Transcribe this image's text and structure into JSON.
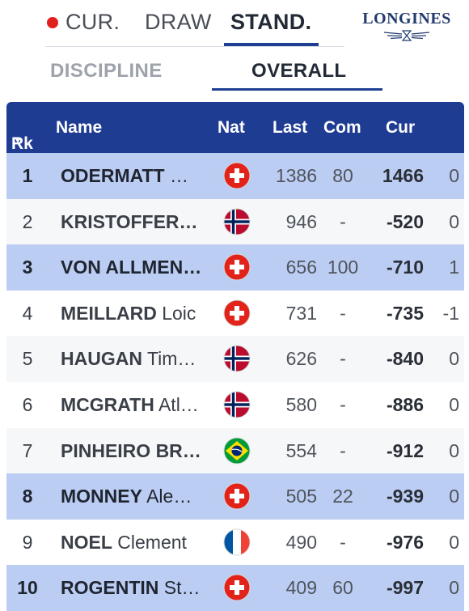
{
  "top_tabs": {
    "cur": "CUR.",
    "draw": "DRAW",
    "stand": "STAND."
  },
  "sponsor_logo": "LONGINES",
  "sub_tabs": {
    "discipline": "DISCIPLINE",
    "overall": "OVERALL"
  },
  "table": {
    "headers": {
      "rk": "Rk",
      "rk_sort_icon": "sort-desc-icon",
      "name": "Name",
      "nat": "Nat",
      "last": "Last",
      "com": "Com",
      "cur": "Cur"
    },
    "rows": [
      {
        "rank": "1",
        "surname": "ODERMATT",
        "given": "…",
        "nat": "SUI",
        "last": "1386",
        "com": "80",
        "cur": "1466",
        "diff": "0",
        "highlight": true
      },
      {
        "rank": "2",
        "surname": "KRISTOFFER…",
        "given": "",
        "nat": "NOR",
        "last": "946",
        "com": "-",
        "cur": "-520",
        "diff": "0",
        "highlight": false
      },
      {
        "rank": "3",
        "surname": "VON ALLMEN…",
        "given": "",
        "nat": "SUI",
        "last": "656",
        "com": "100",
        "cur": "-710",
        "diff": "1",
        "highlight": true
      },
      {
        "rank": "4",
        "surname": "MEILLARD",
        "given": "Loic",
        "nat": "SUI",
        "last": "731",
        "com": "-",
        "cur": "-735",
        "diff": "-1",
        "highlight": false
      },
      {
        "rank": "5",
        "surname": "HAUGAN",
        "given": "Tim…",
        "nat": "NOR",
        "last": "626",
        "com": "-",
        "cur": "-840",
        "diff": "0",
        "highlight": false
      },
      {
        "rank": "6",
        "surname": "MCGRATH",
        "given": "Atl…",
        "nat": "NOR",
        "last": "580",
        "com": "-",
        "cur": "-886",
        "diff": "0",
        "highlight": false
      },
      {
        "rank": "7",
        "surname": "PINHEIRO BR…",
        "given": "",
        "nat": "BRA",
        "last": "554",
        "com": "-",
        "cur": "-912",
        "diff": "0",
        "highlight": false
      },
      {
        "rank": "8",
        "surname": "MONNEY",
        "given": "Ale…",
        "nat": "SUI",
        "last": "505",
        "com": "22",
        "cur": "-939",
        "diff": "0",
        "highlight": true
      },
      {
        "rank": "9",
        "surname": "NOEL",
        "given": "Clement",
        "nat": "FRA",
        "last": "490",
        "com": "-",
        "cur": "-976",
        "diff": "0",
        "highlight": false
      },
      {
        "rank": "10",
        "surname": "ROGENTIN",
        "given": "St…",
        "nat": "SUI",
        "last": "409",
        "com": "60",
        "cur": "-997",
        "diff": "0",
        "highlight": true
      }
    ]
  },
  "colors": {
    "header_bg": "#1f3c93",
    "highlight_row": "#bccdf3",
    "live_dot": "#e0201c",
    "accent_underline": "#1e3f94"
  }
}
